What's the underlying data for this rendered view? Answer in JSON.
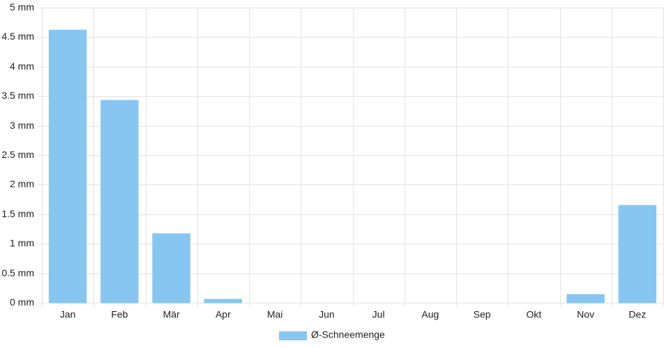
{
  "chart_data": {
    "type": "bar",
    "categories": [
      "Jan",
      "Feb",
      "Mär",
      "Apr",
      "Mai",
      "Jun",
      "Jul",
      "Aug",
      "Sep",
      "Okt",
      "Nov",
      "Dez"
    ],
    "series": [
      {
        "name": "Ø-Schneemenge",
        "color": "#88c6f2",
        "values": [
          4.62,
          3.43,
          1.17,
          0.06,
          0,
          0,
          0,
          0,
          0,
          0,
          0.14,
          1.65
        ]
      }
    ],
    "ylim": [
      0,
      5
    ],
    "yticks": [
      {
        "value": 0,
        "label": "0 mm"
      },
      {
        "value": 0.5,
        "label": "0.5 mm"
      },
      {
        "value": 1,
        "label": "1 mm"
      },
      {
        "value": 1.5,
        "label": "1.5 mm"
      },
      {
        "value": 2,
        "label": "2 mm"
      },
      {
        "value": 2.5,
        "label": "2.5 mm"
      },
      {
        "value": 3,
        "label": "3 mm"
      },
      {
        "value": 3.5,
        "label": "3.5 mm"
      },
      {
        "value": 4,
        "label": "4 mm"
      },
      {
        "value": 4.5,
        "label": "4.5 mm"
      },
      {
        "value": 5,
        "label": "5 mm"
      }
    ],
    "grid": true,
    "legend": "bottom"
  }
}
